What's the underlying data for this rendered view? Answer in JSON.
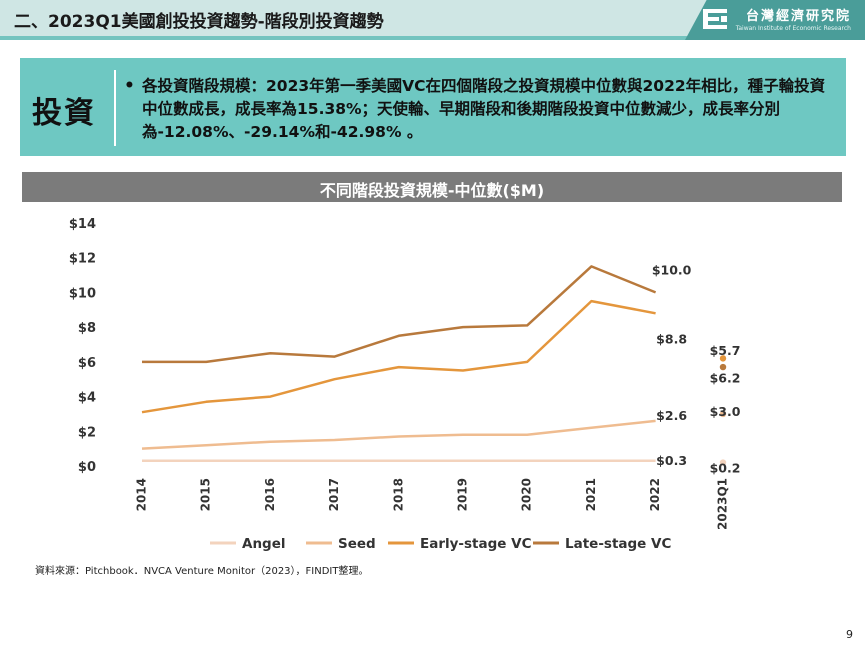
{
  "header": {
    "title": "二、2023Q1美國創投投資趨勢-階段別投資趨勢",
    "logo_zh": "台灣經濟研究院",
    "logo_en": "Taiwan Institute of Economic Research"
  },
  "info": {
    "label": "投資",
    "bullet": "•",
    "text": "各投資階段規模：2023年第一季美國VC在四個階段之投資規模中位數與2022年相比，種子輪投資中位數成長，成長率為15.38%；天使輪、早期階段和後期階段投資中位數減少，成長率分別為-12.08%、-29.14%和-42.98% 。"
  },
  "chart_data": {
    "type": "line",
    "title": "不同階段投資規模-中位數($M)",
    "categories": [
      "2014",
      "2015",
      "2016",
      "2017",
      "2018",
      "2019",
      "2020",
      "2021",
      "2022"
    ],
    "extra_category": "2023Q1",
    "ylim": [
      0,
      14
    ],
    "yticks": [
      "$0",
      "$2",
      "$4",
      "$6",
      "$8",
      "$10",
      "$12",
      "$14"
    ],
    "grid": false,
    "legend_position": "bottom",
    "series": [
      {
        "name": "Angel",
        "color": "#f3d3bd",
        "values": [
          0.3,
          0.3,
          0.3,
          0.3,
          0.3,
          0.3,
          0.3,
          0.3,
          0.3
        ],
        "q1_value": 0.2,
        "end_label": "$0.3",
        "q1_label": "$0.2"
      },
      {
        "name": "Seed",
        "color": "#efbc90",
        "values": [
          1.0,
          1.2,
          1.4,
          1.5,
          1.7,
          1.8,
          1.8,
          2.2,
          2.6
        ],
        "q1_value": 3.0,
        "end_label": "$2.6",
        "q1_label": "$3.0"
      },
      {
        "name": "Early-stage VC",
        "color": "#e4963c",
        "values": [
          3.1,
          3.7,
          4.0,
          5.0,
          5.7,
          5.5,
          6.0,
          9.5,
          8.8
        ],
        "q1_value": 6.2,
        "end_label": "$8.8",
        "q1_label": "$6.2"
      },
      {
        "name": "Late-stage VC",
        "color": "#b8793c",
        "values": [
          6.0,
          6.0,
          6.5,
          6.3,
          7.5,
          8.0,
          8.1,
          11.5,
          10.0
        ],
        "q1_value": 5.7,
        "end_label": "$10.0",
        "q1_label": "$5.7"
      }
    ]
  },
  "footer": {
    "source": "資料來源：Pitchbook．NVCA Venture Monitor（2023），FINDIT整理。",
    "page": "9"
  }
}
